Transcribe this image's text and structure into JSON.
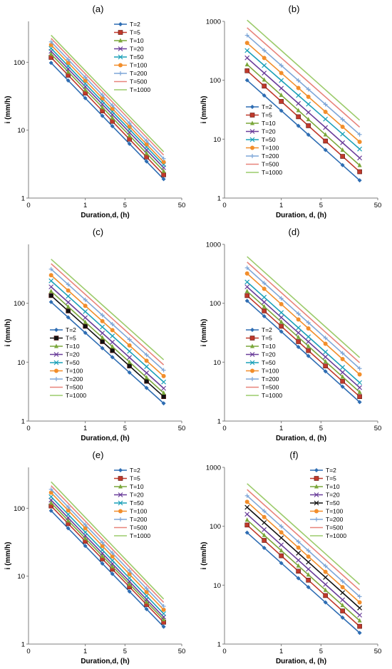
{
  "chart_data": [
    {
      "panel_label": "(a)",
      "type": "line",
      "x_scale": "log",
      "y_scale": "log",
      "xlim": [
        0.1,
        50
      ],
      "ylim": [
        1,
        400
      ],
      "xticks": [
        1,
        5,
        50
      ],
      "xtick_labels": [
        "1",
        "5",
        "50"
      ],
      "yticks": [
        1,
        10,
        100
      ],
      "ytick_labels": [
        "1",
        "10",
        "100"
      ],
      "xlabel": "Duration,d, (h)",
      "ylabel": "i (mm/h)",
      "legend_position": "top-right",
      "x": [
        0.25,
        0.5,
        1,
        2,
        3,
        6,
        12,
        24
      ],
      "series": [
        {
          "name": "T=2",
          "color": "#2e6db3",
          "marker": "diamond",
          "start": 98,
          "end": 1.9
        },
        {
          "name": "T=5",
          "color": "#c0392b",
          "marker": "square",
          "start": 118,
          "end": 2.2
        },
        {
          "name": "T=10",
          "color": "#7aa73a",
          "marker": "triangle",
          "start": 132,
          "end": 2.5
        },
        {
          "name": "T=20",
          "color": "#6a3d9a",
          "marker": "x",
          "start": 145,
          "end": 2.8
        },
        {
          "name": "T=50",
          "color": "#1aa0b8",
          "marker": "x",
          "start": 160,
          "end": 3.1
        },
        {
          "name": "T=100",
          "color": "#f28e2b",
          "marker": "circle",
          "start": 180,
          "end": 3.4
        },
        {
          "name": "T=200",
          "color": "#7fa7d8",
          "marker": "plus",
          "start": 200,
          "end": 3.8
        },
        {
          "name": "T=500",
          "color": "#e8837a",
          "marker": "none",
          "start": 225,
          "end": 4.3
        },
        {
          "name": "T=1000",
          "color": "#9ccb6b",
          "marker": "none",
          "start": 250,
          "end": 4.8
        }
      ]
    },
    {
      "panel_label": "(b)",
      "type": "line",
      "x_scale": "log",
      "y_scale": "log",
      "xlim": [
        0.1,
        50
      ],
      "ylim": [
        1,
        1000
      ],
      "xticks": [
        1,
        5,
        50
      ],
      "xtick_labels": [
        "1",
        "5",
        "50"
      ],
      "yticks": [
        1,
        10,
        100,
        1000
      ],
      "ytick_labels": [
        "1",
        "10",
        "100",
        "1000"
      ],
      "xlabel": "Duration, d, (h)",
      "ylabel": "i (mm/h)",
      "legend_position": "bottom-left",
      "x": [
        0.25,
        0.5,
        1,
        2,
        3,
        6,
        12,
        24
      ],
      "series": [
        {
          "name": "T=2",
          "color": "#2e6db3",
          "marker": "diamond",
          "start": 100,
          "end": 2.0
        },
        {
          "name": "T=5",
          "color": "#c0392b",
          "marker": "square",
          "start": 145,
          "end": 2.8
        },
        {
          "name": "T=10",
          "color": "#7aa73a",
          "marker": "triangle",
          "start": 185,
          "end": 3.6
        },
        {
          "name": "T=20",
          "color": "#6a3d9a",
          "marker": "x",
          "start": 240,
          "end": 4.8
        },
        {
          "name": "T=50",
          "color": "#1aa0b8",
          "marker": "x",
          "start": 320,
          "end": 6.8
        },
        {
          "name": "T=100",
          "color": "#f28e2b",
          "marker": "circle",
          "start": 430,
          "end": 9.0
        },
        {
          "name": "T=200",
          "color": "#7fa7d8",
          "marker": "plus",
          "start": 580,
          "end": 12
        },
        {
          "name": "T=500",
          "color": "#e8837a",
          "marker": "none",
          "start": 780,
          "end": 16
        },
        {
          "name": "T=1000",
          "color": "#9ccb6b",
          "marker": "none",
          "start": 1050,
          "end": 21
        }
      ]
    },
    {
      "panel_label": "(c)",
      "type": "line",
      "x_scale": "log",
      "y_scale": "log",
      "xlim": [
        0.1,
        50
      ],
      "ylim": [
        1,
        1000
      ],
      "xticks": [
        1,
        5,
        50
      ],
      "xtick_labels": [
        "1",
        "5",
        "50"
      ],
      "yticks": [
        1,
        10,
        100
      ],
      "ytick_labels": [
        "1",
        "10",
        "100"
      ],
      "xlabel": "Duration,d, (h)",
      "ylabel": "i (mm/h)",
      "legend_position": "bottom-left",
      "x": [
        0.25,
        0.5,
        1,
        2,
        3,
        6,
        12,
        24
      ],
      "series": [
        {
          "name": "T=2",
          "color": "#2e6db3",
          "marker": "diamond",
          "start": 105,
          "end": 2.0
        },
        {
          "name": "T=5",
          "color": "#111111",
          "marker": "square",
          "start": 135,
          "end": 2.6
        },
        {
          "name": "T=10",
          "color": "#7aa73a",
          "marker": "triangle",
          "start": 160,
          "end": 3.0
        },
        {
          "name": "T=20",
          "color": "#6a3d9a",
          "marker": "x",
          "start": 190,
          "end": 3.6
        },
        {
          "name": "T=50",
          "color": "#1aa0b8",
          "marker": "x",
          "start": 240,
          "end": 4.6
        },
        {
          "name": "T=100",
          "color": "#f28e2b",
          "marker": "circle",
          "start": 300,
          "end": 5.8
        },
        {
          "name": "T=200",
          "color": "#7fa7d8",
          "marker": "plus",
          "start": 380,
          "end": 7.3
        },
        {
          "name": "T=500",
          "color": "#e8837a",
          "marker": "none",
          "start": 470,
          "end": 9.0
        },
        {
          "name": "T=1000",
          "color": "#9ccb6b",
          "marker": "none",
          "start": 560,
          "end": 11
        }
      ]
    },
    {
      "panel_label": "(d)",
      "type": "line",
      "x_scale": "log",
      "y_scale": "log",
      "xlim": [
        0.1,
        50
      ],
      "ylim": [
        1,
        1000
      ],
      "xticks": [
        1,
        5,
        50
      ],
      "xtick_labels": [
        "1",
        "5",
        "50"
      ],
      "yticks": [
        1,
        10,
        100,
        1000
      ],
      "ytick_labels": [
        "1",
        "10",
        "100",
        "1000"
      ],
      "xlabel": "Duration, d, (h)",
      "ylabel": "i (mm/h)",
      "legend_position": "bottom-left",
      "x": [
        0.25,
        0.5,
        1,
        2,
        3,
        6,
        12,
        24
      ],
      "series": [
        {
          "name": "T=2",
          "color": "#2e6db3",
          "marker": "diamond",
          "start": 110,
          "end": 2.1
        },
        {
          "name": "T=5",
          "color": "#c0392b",
          "marker": "square",
          "start": 135,
          "end": 2.6
        },
        {
          "name": "T=10",
          "color": "#7aa73a",
          "marker": "triangle",
          "start": 160,
          "end": 3.1
        },
        {
          "name": "T=20",
          "color": "#6a3d9a",
          "marker": "x",
          "start": 190,
          "end": 3.7
        },
        {
          "name": "T=50",
          "color": "#1aa0b8",
          "marker": "x",
          "start": 230,
          "end": 4.5
        },
        {
          "name": "T=100",
          "color": "#f28e2b",
          "marker": "circle",
          "start": 320,
          "end": 6.2
        },
        {
          "name": "T=200",
          "color": "#7fa7d8",
          "marker": "plus",
          "start": 400,
          "end": 7.8
        },
        {
          "name": "T=500",
          "color": "#e8837a",
          "marker": "none",
          "start": 500,
          "end": 9.8
        },
        {
          "name": "T=1000",
          "color": "#9ccb6b",
          "marker": "none",
          "start": 620,
          "end": 12
        }
      ]
    },
    {
      "panel_label": "(e)",
      "type": "line",
      "x_scale": "log",
      "y_scale": "log",
      "xlim": [
        0.1,
        50
      ],
      "ylim": [
        1,
        400
      ],
      "xticks": [
        1,
        5,
        50
      ],
      "xtick_labels": [
        "1",
        "5",
        "50"
      ],
      "yticks": [
        1,
        10,
        100
      ],
      "ytick_labels": [
        "1",
        "10",
        "100"
      ],
      "xlabel": "Duration,d, (h)",
      "ylabel": "i (mm/h)",
      "legend_position": "top-right",
      "x": [
        0.25,
        0.5,
        1,
        2,
        3,
        6,
        12,
        24
      ],
      "series": [
        {
          "name": "T=2",
          "color": "#2e6db3",
          "marker": "diamond",
          "start": 92,
          "end": 1.8
        },
        {
          "name": "T=5",
          "color": "#c0392b",
          "marker": "square",
          "start": 108,
          "end": 2.1
        },
        {
          "name": "T=10",
          "color": "#7aa73a",
          "marker": "triangle",
          "start": 120,
          "end": 2.3
        },
        {
          "name": "T=20",
          "color": "#6a3d9a",
          "marker": "x",
          "start": 132,
          "end": 2.5
        },
        {
          "name": "T=50",
          "color": "#1aa0b8",
          "marker": "x",
          "start": 148,
          "end": 2.8
        },
        {
          "name": "T=100",
          "color": "#f28e2b",
          "marker": "circle",
          "start": 170,
          "end": 3.2
        },
        {
          "name": "T=200",
          "color": "#7fa7d8",
          "marker": "plus",
          "start": 190,
          "end": 3.6
        },
        {
          "name": "T=500",
          "color": "#e8837a",
          "marker": "none",
          "start": 215,
          "end": 4.1
        },
        {
          "name": "T=1000",
          "color": "#9ccb6b",
          "marker": "none",
          "start": 245,
          "end": 4.6
        }
      ]
    },
    {
      "panel_label": "(f)",
      "type": "line",
      "x_scale": "log",
      "y_scale": "log",
      "xlim": [
        0.1,
        50
      ],
      "ylim": [
        1,
        1000
      ],
      "xticks": [
        1,
        5,
        50
      ],
      "xtick_labels": [
        "1",
        "5",
        "50"
      ],
      "yticks": [
        1,
        10,
        100,
        1000
      ],
      "ytick_labels": [
        "1",
        "10",
        "100",
        "1000"
      ],
      "xlabel": "Duration, d, (h)",
      "ylabel": "i (mm/h)",
      "legend_position": "top-right",
      "x": [
        0.25,
        0.5,
        1,
        2,
        3,
        6,
        12,
        24
      ],
      "series": [
        {
          "name": "T=2",
          "color": "#2e6db3",
          "marker": "diamond",
          "start": 78,
          "end": 1.55
        },
        {
          "name": "T=5",
          "color": "#c0392b",
          "marker": "square",
          "start": 105,
          "end": 2.0
        },
        {
          "name": "T=10",
          "color": "#7aa73a",
          "marker": "triangle",
          "start": 128,
          "end": 2.5
        },
        {
          "name": "T=20",
          "color": "#6a3d9a",
          "marker": "x",
          "start": 160,
          "end": 3.1
        },
        {
          "name": "T=50",
          "color": "#111111",
          "marker": "x",
          "start": 210,
          "end": 4.1
        },
        {
          "name": "T=100",
          "color": "#f28e2b",
          "marker": "circle",
          "start": 260,
          "end": 5.1
        },
        {
          "name": "T=200",
          "color": "#7fa7d8",
          "marker": "plus",
          "start": 330,
          "end": 6.4
        },
        {
          "name": "T=500",
          "color": "#e8837a",
          "marker": "none",
          "start": 420,
          "end": 8.2
        },
        {
          "name": "T=1000",
          "color": "#9ccb6b",
          "marker": "none",
          "start": 530,
          "end": 10.3
        }
      ]
    }
  ]
}
